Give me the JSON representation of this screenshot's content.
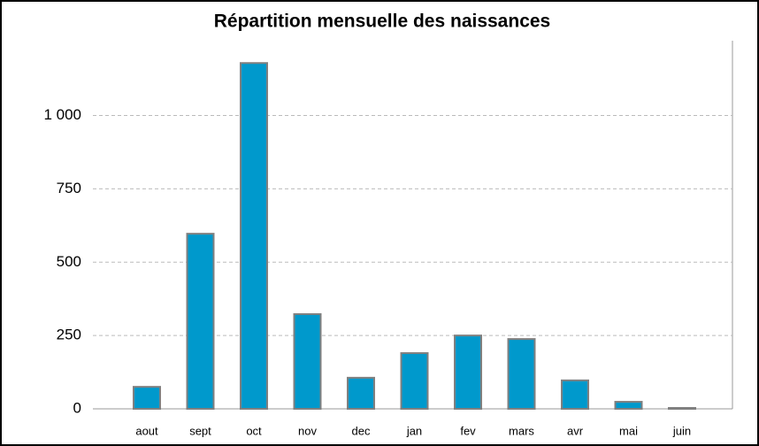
{
  "chart_data": {
    "type": "bar",
    "title": "Répartition mensuelle des naissances",
    "categories": [
      "aout",
      "sept",
      "oct",
      "nov",
      "dec",
      "jan",
      "fev",
      "mars",
      "avr",
      "mai",
      "juin"
    ],
    "values": [
      75,
      597,
      1179,
      323,
      106,
      190,
      250,
      238,
      97,
      24,
      3
    ],
    "color": "#0099cc",
    "ylim": [
      0,
      1240
    ],
    "yticks": [
      0,
      250,
      500,
      750,
      {
        "value": 1000,
        "label": "1 000"
      }
    ],
    "grid": true
  }
}
